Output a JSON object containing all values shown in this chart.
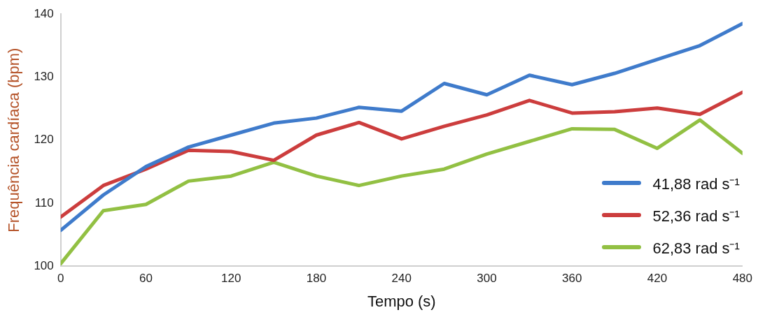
{
  "chart_data": {
    "type": "line",
    "xlabel": "Tempo (s)",
    "ylabel": "Frequência cardíaca (bpm)",
    "x": [
      0,
      30,
      60,
      90,
      120,
      150,
      180,
      210,
      240,
      270,
      300,
      330,
      360,
      390,
      420,
      450,
      480
    ],
    "xlim": [
      0,
      480
    ],
    "xticks": [
      0,
      60,
      120,
      180,
      240,
      300,
      360,
      420,
      480
    ],
    "ylim": [
      100,
      140
    ],
    "yticks": [
      100,
      110,
      120,
      130,
      140
    ],
    "grid": false,
    "legend": "bottom right",
    "marker": "none",
    "line_style": "solid",
    "series": [
      {
        "name": "41,88 rad s⁻¹",
        "color": "#3f7bcb",
        "values": [
          105.7,
          111.3,
          115.8,
          118.9,
          120.8,
          122.7,
          123.5,
          125.2,
          124.6,
          129.0,
          127.2,
          130.3,
          128.8,
          130.6,
          132.8,
          135.0,
          138.5
        ]
      },
      {
        "name": "52,36 rad s⁻¹",
        "color": "#cc3d3d",
        "values": [
          107.8,
          112.8,
          115.4,
          118.4,
          118.2,
          116.8,
          120.8,
          122.8,
          120.2,
          122.2,
          124.0,
          126.3,
          124.3,
          124.5,
          125.1,
          124.1,
          127.6
        ]
      },
      {
        "name": "62,83 rad s⁻¹",
        "color": "#92c043",
        "values": [
          100.4,
          108.8,
          109.8,
          113.5,
          114.3,
          116.5,
          114.3,
          112.8,
          114.3,
          115.4,
          117.8,
          119.8,
          121.8,
          121.7,
          118.7,
          123.2,
          117.9
        ]
      }
    ]
  }
}
